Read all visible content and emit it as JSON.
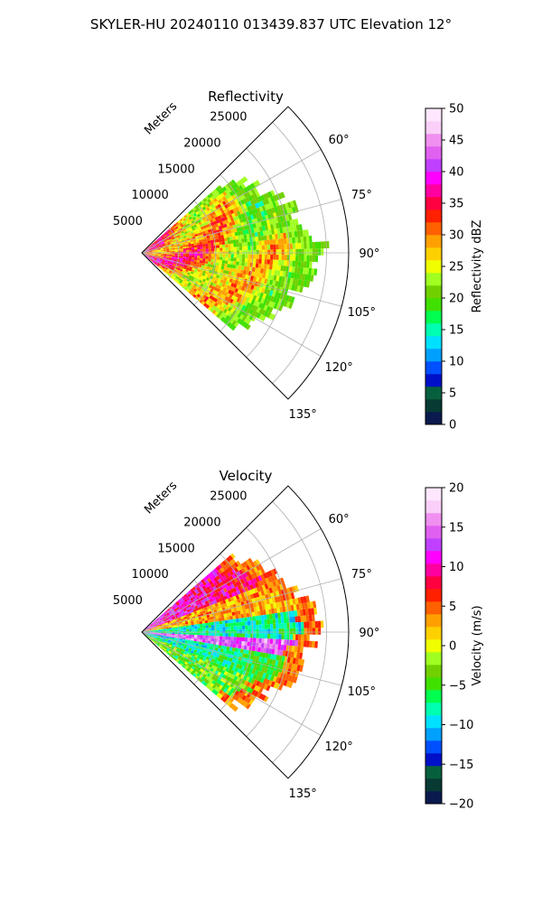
{
  "figure": {
    "title": "SKYLER-HU  20240110  013439.837 UTC Elevation 12°"
  },
  "chart_data": [
    {
      "type": "heatmap",
      "title": "Reflectivity",
      "range_label": "Meters",
      "range_ticks": [
        5000,
        10000,
        15000,
        20000,
        25000
      ],
      "range_tick_labels": [
        "5000",
        "10000",
        "15000",
        "20000",
        "25000"
      ],
      "range_max": 28000,
      "azimuth_range_deg": [
        45,
        135
      ],
      "azimuth_ticks": [
        60,
        75,
        90,
        105,
        120,
        135
      ],
      "azimuth_tick_labels": [
        "60°",
        "75°",
        "90°",
        "105°",
        "120°",
        "135°"
      ],
      "grid": true,
      "colorbar": {
        "label": "Reflectivity dBZ",
        "min": 0,
        "max": 50,
        "ticks": [
          0,
          5,
          10,
          15,
          20,
          25,
          30,
          35,
          40,
          45,
          50
        ],
        "tick_labels": [
          "0",
          "5",
          "10",
          "15",
          "20",
          "25",
          "30",
          "35",
          "40",
          "45",
          "50"
        ],
        "colors": [
          "#0a1a4e",
          "#063a32",
          "#07603d",
          "#0010c8",
          "#0050ff",
          "#00a0ff",
          "#00e0ff",
          "#00ffb0",
          "#00ff50",
          "#40e000",
          "#70d000",
          "#a0ff20",
          "#f0ff00",
          "#ffd000",
          "#ffa000",
          "#ff6000",
          "#ff2000",
          "#ff0040",
          "#ff00a0",
          "#ff00ff",
          "#c040ff",
          "#e060f0",
          "#f090f0",
          "#fad0f8",
          "#ffe8ff"
        ]
      }
    },
    {
      "type": "heatmap",
      "title": "Velocity",
      "range_label": "Meters",
      "range_ticks": [
        5000,
        10000,
        15000,
        20000,
        25000
      ],
      "range_tick_labels": [
        "5000",
        "10000",
        "15000",
        "20000",
        "25000"
      ],
      "range_max": 28000,
      "azimuth_range_deg": [
        45,
        135
      ],
      "azimuth_ticks": [
        60,
        75,
        90,
        105,
        120,
        135
      ],
      "azimuth_tick_labels": [
        "60°",
        "75°",
        "90°",
        "105°",
        "120°",
        "135°"
      ],
      "grid": true,
      "colorbar": {
        "label": "Velocity (m/s)",
        "min": -20,
        "max": 20,
        "ticks": [
          -20,
          -15,
          -10,
          -5,
          0,
          5,
          10,
          15,
          20
        ],
        "tick_labels": [
          "−20",
          "−15",
          "−10",
          "−5",
          "0",
          "5",
          "10",
          "15",
          "20"
        ],
        "colors": [
          "#0a1a4e",
          "#063a32",
          "#07603d",
          "#0010c8",
          "#0050ff",
          "#00a0ff",
          "#00e0ff",
          "#00ffb0",
          "#00ff50",
          "#40e000",
          "#70d000",
          "#a0ff20",
          "#f0ff00",
          "#ffd000",
          "#ffa000",
          "#ff6000",
          "#ff2000",
          "#ff0040",
          "#ff00a0",
          "#ff00ff",
          "#c040ff",
          "#e060f0",
          "#f090f0",
          "#fad0f8",
          "#ffe8ff"
        ]
      }
    }
  ]
}
